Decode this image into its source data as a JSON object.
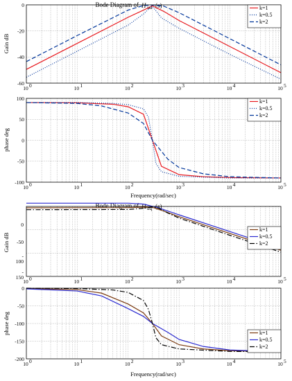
{
  "chart_data": [
    {
      "type": "line",
      "title_prefix": "Bode Diagram of",
      "title_symbol": "H",
      "title_subscript": "ud",
      "title_arg": "(s)",
      "ylabel": "Gain dB",
      "xlabel": "",
      "xscale": "log",
      "xlim": [
        1,
        100000
      ],
      "ylim": [
        -60,
        0
      ],
      "xticks": [
        1,
        10,
        100,
        1000,
        10000,
        100000
      ],
      "xtick_labels": [
        "10",
        "10",
        "10",
        "10",
        "10",
        "10"
      ],
      "xtick_exponents": [
        "0",
        "1",
        "2",
        "3",
        "4",
        "5"
      ],
      "yticks": [
        -60,
        -40,
        -20,
        0
      ],
      "ytick_labels": [
        "-60",
        "-40",
        "-20",
        "0"
      ],
      "grid": true,
      "legend_position": "top-right",
      "series": [
        {
          "name": "k=1",
          "color": "#e8191e",
          "style": "solid",
          "x": [
            1,
            10,
            100,
            200,
            300,
            500,
            1000,
            10000,
            100000
          ],
          "y": [
            -49.5,
            -29.5,
            -9.5,
            -4,
            -0.8,
            -5,
            -12,
            -32,
            -52
          ]
        },
        {
          "name": "k=0.5",
          "color": "#00359a",
          "style": "dotted",
          "x": [
            1,
            10,
            100,
            200,
            280,
            320,
            450,
            1000,
            10000,
            100000
          ],
          "y": [
            -55.5,
            -35.5,
            -15.5,
            -7,
            -1.5,
            -2.5,
            -10,
            -18,
            -38,
            -57
          ]
        },
        {
          "name": "k=2",
          "color": "#00359a",
          "style": "dashed",
          "x": [
            1,
            10,
            100,
            200,
            300,
            500,
            1000,
            10000,
            100000
          ],
          "y": [
            -43.5,
            -23.5,
            -4,
            -0.5,
            -0.2,
            -1,
            -6,
            -26,
            -46
          ]
        }
      ]
    },
    {
      "type": "line",
      "ylabel": "phase deg",
      "xlabel": "Frequency(rad/sec)",
      "xscale": "log",
      "xlim": [
        1,
        100000
      ],
      "ylim": [
        -100,
        100
      ],
      "xticks": [
        1,
        10,
        100,
        1000,
        10000,
        100000
      ],
      "xtick_labels": [
        "10",
        "10",
        "10",
        "10",
        "10",
        "10"
      ],
      "xtick_exponents": [
        "0",
        "1",
        "2",
        "3",
        "4",
        "5"
      ],
      "yticks": [
        -100,
        -50,
        0,
        50,
        100
      ],
      "ytick_labels": [
        "-100",
        "-50",
        "0",
        "50",
        "100"
      ],
      "grid": true,
      "legend_position": "top-right",
      "series": [
        {
          "name": "k=1",
          "color": "#e8191e",
          "style": "solid",
          "x": [
            1,
            10,
            50,
            100,
            200,
            300,
            450,
            1000,
            3000,
            10000,
            100000
          ],
          "y": [
            90,
            89.5,
            86,
            80,
            62,
            0,
            -62,
            -82,
            -87,
            -89,
            -90
          ]
        },
        {
          "name": "k=0.5",
          "color": "#00359a",
          "style": "dotted",
          "x": [
            1,
            10,
            50,
            100,
            200,
            250,
            300,
            350,
            450,
            1000,
            10000,
            100000
          ],
          "y": [
            90,
            90,
            88,
            85,
            75,
            55,
            0,
            -55,
            -75,
            -86,
            -90,
            -90
          ]
        },
        {
          "name": "k=2",
          "color": "#00359a",
          "style": "dashed",
          "x": [
            1,
            10,
            30,
            100,
            200,
            300,
            600,
            1000,
            3000,
            10000,
            100000
          ],
          "y": [
            90,
            88,
            82,
            65,
            40,
            0,
            -45,
            -65,
            -80,
            -87,
            -90
          ]
        }
      ]
    },
    {
      "type": "line",
      "title_prefix": "Bode Diagram of",
      "title_symbol": "H",
      "title_subscript": "uq",
      "title_arg": "(s)",
      "ylabel": "Gain dB",
      "xlabel": "",
      "xscale": "log",
      "xlim": [
        1,
        100000
      ],
      "ylim": [
        -150,
        0
      ],
      "xticks": [
        1,
        10,
        100,
        1000,
        10000,
        100000
      ],
      "xtick_labels": [
        "10",
        "10",
        "10",
        "10",
        "10",
        "10"
      ],
      "xtick_exponents": [
        "0",
        "1",
        "2",
        "3",
        "4",
        "5"
      ],
      "ytick_labels": [
        "0",
        "-50",
        "-",
        "100",
        "-",
        "150"
      ],
      "grid": true,
      "legend_position": "top-right",
      "series": [
        {
          "name": "k=1",
          "color": "#7a3a10",
          "style": "solid",
          "x": [
            1,
            100,
            200,
            300,
            500,
            1000,
            10000,
            100000
          ],
          "y": [
            -3,
            -2.5,
            -1.5,
            -2,
            -10,
            -22,
            -58,
            -94
          ]
        },
        {
          "name": "k=0.5",
          "color": "#2a2ad0",
          "style": "solid",
          "x": [
            1,
            100,
            200,
            280,
            350,
            500,
            1000,
            10000,
            100000
          ],
          "y": [
            7,
            7,
            5,
            1,
            -1,
            -7,
            -18,
            -54,
            -90
          ]
        },
        {
          "name": "k=2",
          "color": "#000000",
          "style": "dashdot",
          "x": [
            1,
            100,
            200,
            300,
            400,
            600,
            1000,
            10000,
            100000
          ],
          "y": [
            -7,
            -6.5,
            -4,
            -1,
            -4,
            -14,
            -25,
            -62,
            -98
          ]
        }
      ]
    },
    {
      "type": "line",
      "ylabel": "phase deg",
      "xlabel": "Frequency(rad/sec)",
      "xscale": "log",
      "xlim": [
        1,
        100000
      ],
      "ylim": [
        -200,
        0
      ],
      "xticks": [
        1,
        10,
        100,
        1000,
        10000,
        100000
      ],
      "xtick_labels": [
        "10",
        "10",
        "10",
        "10",
        "10",
        "10"
      ],
      "xtick_exponents": [
        "0",
        "1",
        "2",
        "3",
        "4",
        "5"
      ],
      "yticks": [
        -200,
        -150,
        -100,
        -50,
        0
      ],
      "ytick_labels": [
        "-200",
        "-150",
        "-100",
        "-50",
        "0"
      ],
      "grid": true,
      "legend_position": "top-right",
      "series": [
        {
          "name": "k=1",
          "color": "#7a3a10",
          "style": "solid",
          "x": [
            1,
            10,
            30,
            100,
            200,
            300,
            450,
            1000,
            3000,
            10000,
            100000
          ],
          "y": [
            -1,
            -4,
            -14,
            -45,
            -70,
            -100,
            -135,
            -160,
            -172,
            -177,
            -180
          ]
        },
        {
          "name": "k=0.5",
          "color": "#2a2ad0",
          "style": "solid",
          "x": [
            1,
            10,
            30,
            100,
            200,
            300,
            600,
            1000,
            3000,
            10000,
            100000
          ],
          "y": [
            -2,
            -8,
            -22,
            -58,
            -80,
            -100,
            -125,
            -145,
            -165,
            -175,
            -180
          ]
        },
        {
          "name": "k=2",
          "color": "#000000",
          "style": "dashdot",
          "x": [
            1,
            10,
            50,
            100,
            200,
            250,
            300,
            350,
            450,
            1000,
            10000,
            100000
          ],
          "y": [
            0,
            -1,
            -5,
            -12,
            -35,
            -60,
            -100,
            -140,
            -160,
            -172,
            -179,
            -180
          ]
        }
      ]
    }
  ]
}
